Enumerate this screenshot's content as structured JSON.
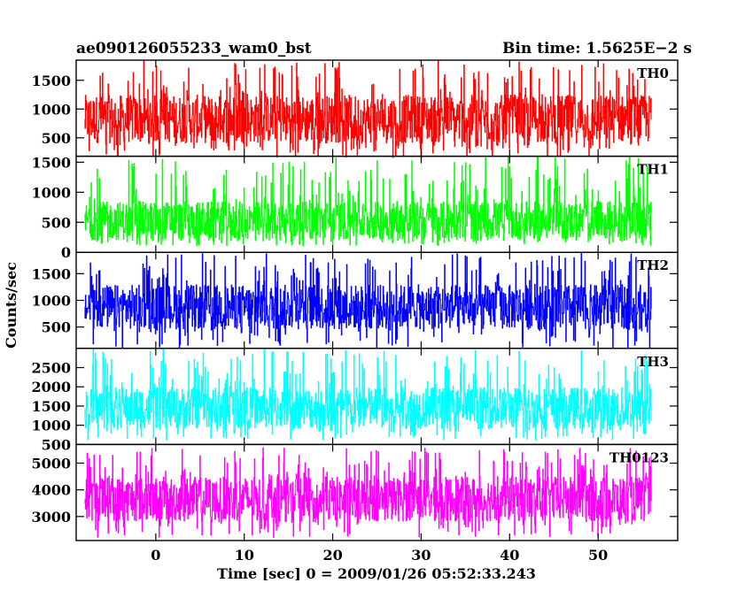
{
  "header": {
    "left_title": "ae090126055233_wam0_bst",
    "right_title": "Bin time: 1.5625E−2 s"
  },
  "chart_data": {
    "type": "line",
    "title": "ae090126055233_wam0_bst",
    "subtitle": "Bin time: 1.5625E−2 s",
    "xlabel": "Time [sec] 0 = 2009/01/26 05:52:33.243",
    "ylabel": "Counts/sec",
    "xlim": [
      -9,
      59
    ],
    "x_data_range": [
      -8,
      56
    ],
    "xticks": [
      0,
      10,
      20,
      30,
      40,
      50
    ],
    "grid": false,
    "panels": [
      {
        "name": "TH0",
        "color": "#ff0000",
        "ylim": [
          180,
          1850
        ],
        "yticks": [
          500,
          1000,
          1500
        ],
        "typical_band": [
          400,
          1250
        ],
        "envelope": [
          150,
          1850
        ]
      },
      {
        "name": "TH1",
        "color": "#00ff00",
        "ylim": [
          0,
          1600
        ],
        "yticks": [
          0,
          500,
          1000,
          1500
        ],
        "typical_band": [
          200,
          850
        ],
        "envelope": [
          100,
          1600
        ]
      },
      {
        "name": "TH2",
        "color": "#0000ff",
        "ylim": [
          100,
          1900
        ],
        "yticks": [
          500,
          1000,
          1500
        ],
        "typical_band": [
          450,
          1300
        ],
        "envelope": [
          100,
          1900
        ]
      },
      {
        "name": "TH3",
        "color": "#00ffff",
        "ylim": [
          500,
          3000
        ],
        "yticks": [
          500,
          1000,
          1500,
          2000,
          2500
        ],
        "typical_band": [
          900,
          2000
        ],
        "envelope": [
          600,
          3000
        ]
      },
      {
        "name": "TH0123",
        "color": "#ff00ff",
        "ylim": [
          2100,
          5700
        ],
        "yticks": [
          3000,
          4000,
          5000
        ],
        "typical_band": [
          2800,
          4500
        ],
        "envelope": [
          2200,
          5600
        ]
      }
    ]
  }
}
